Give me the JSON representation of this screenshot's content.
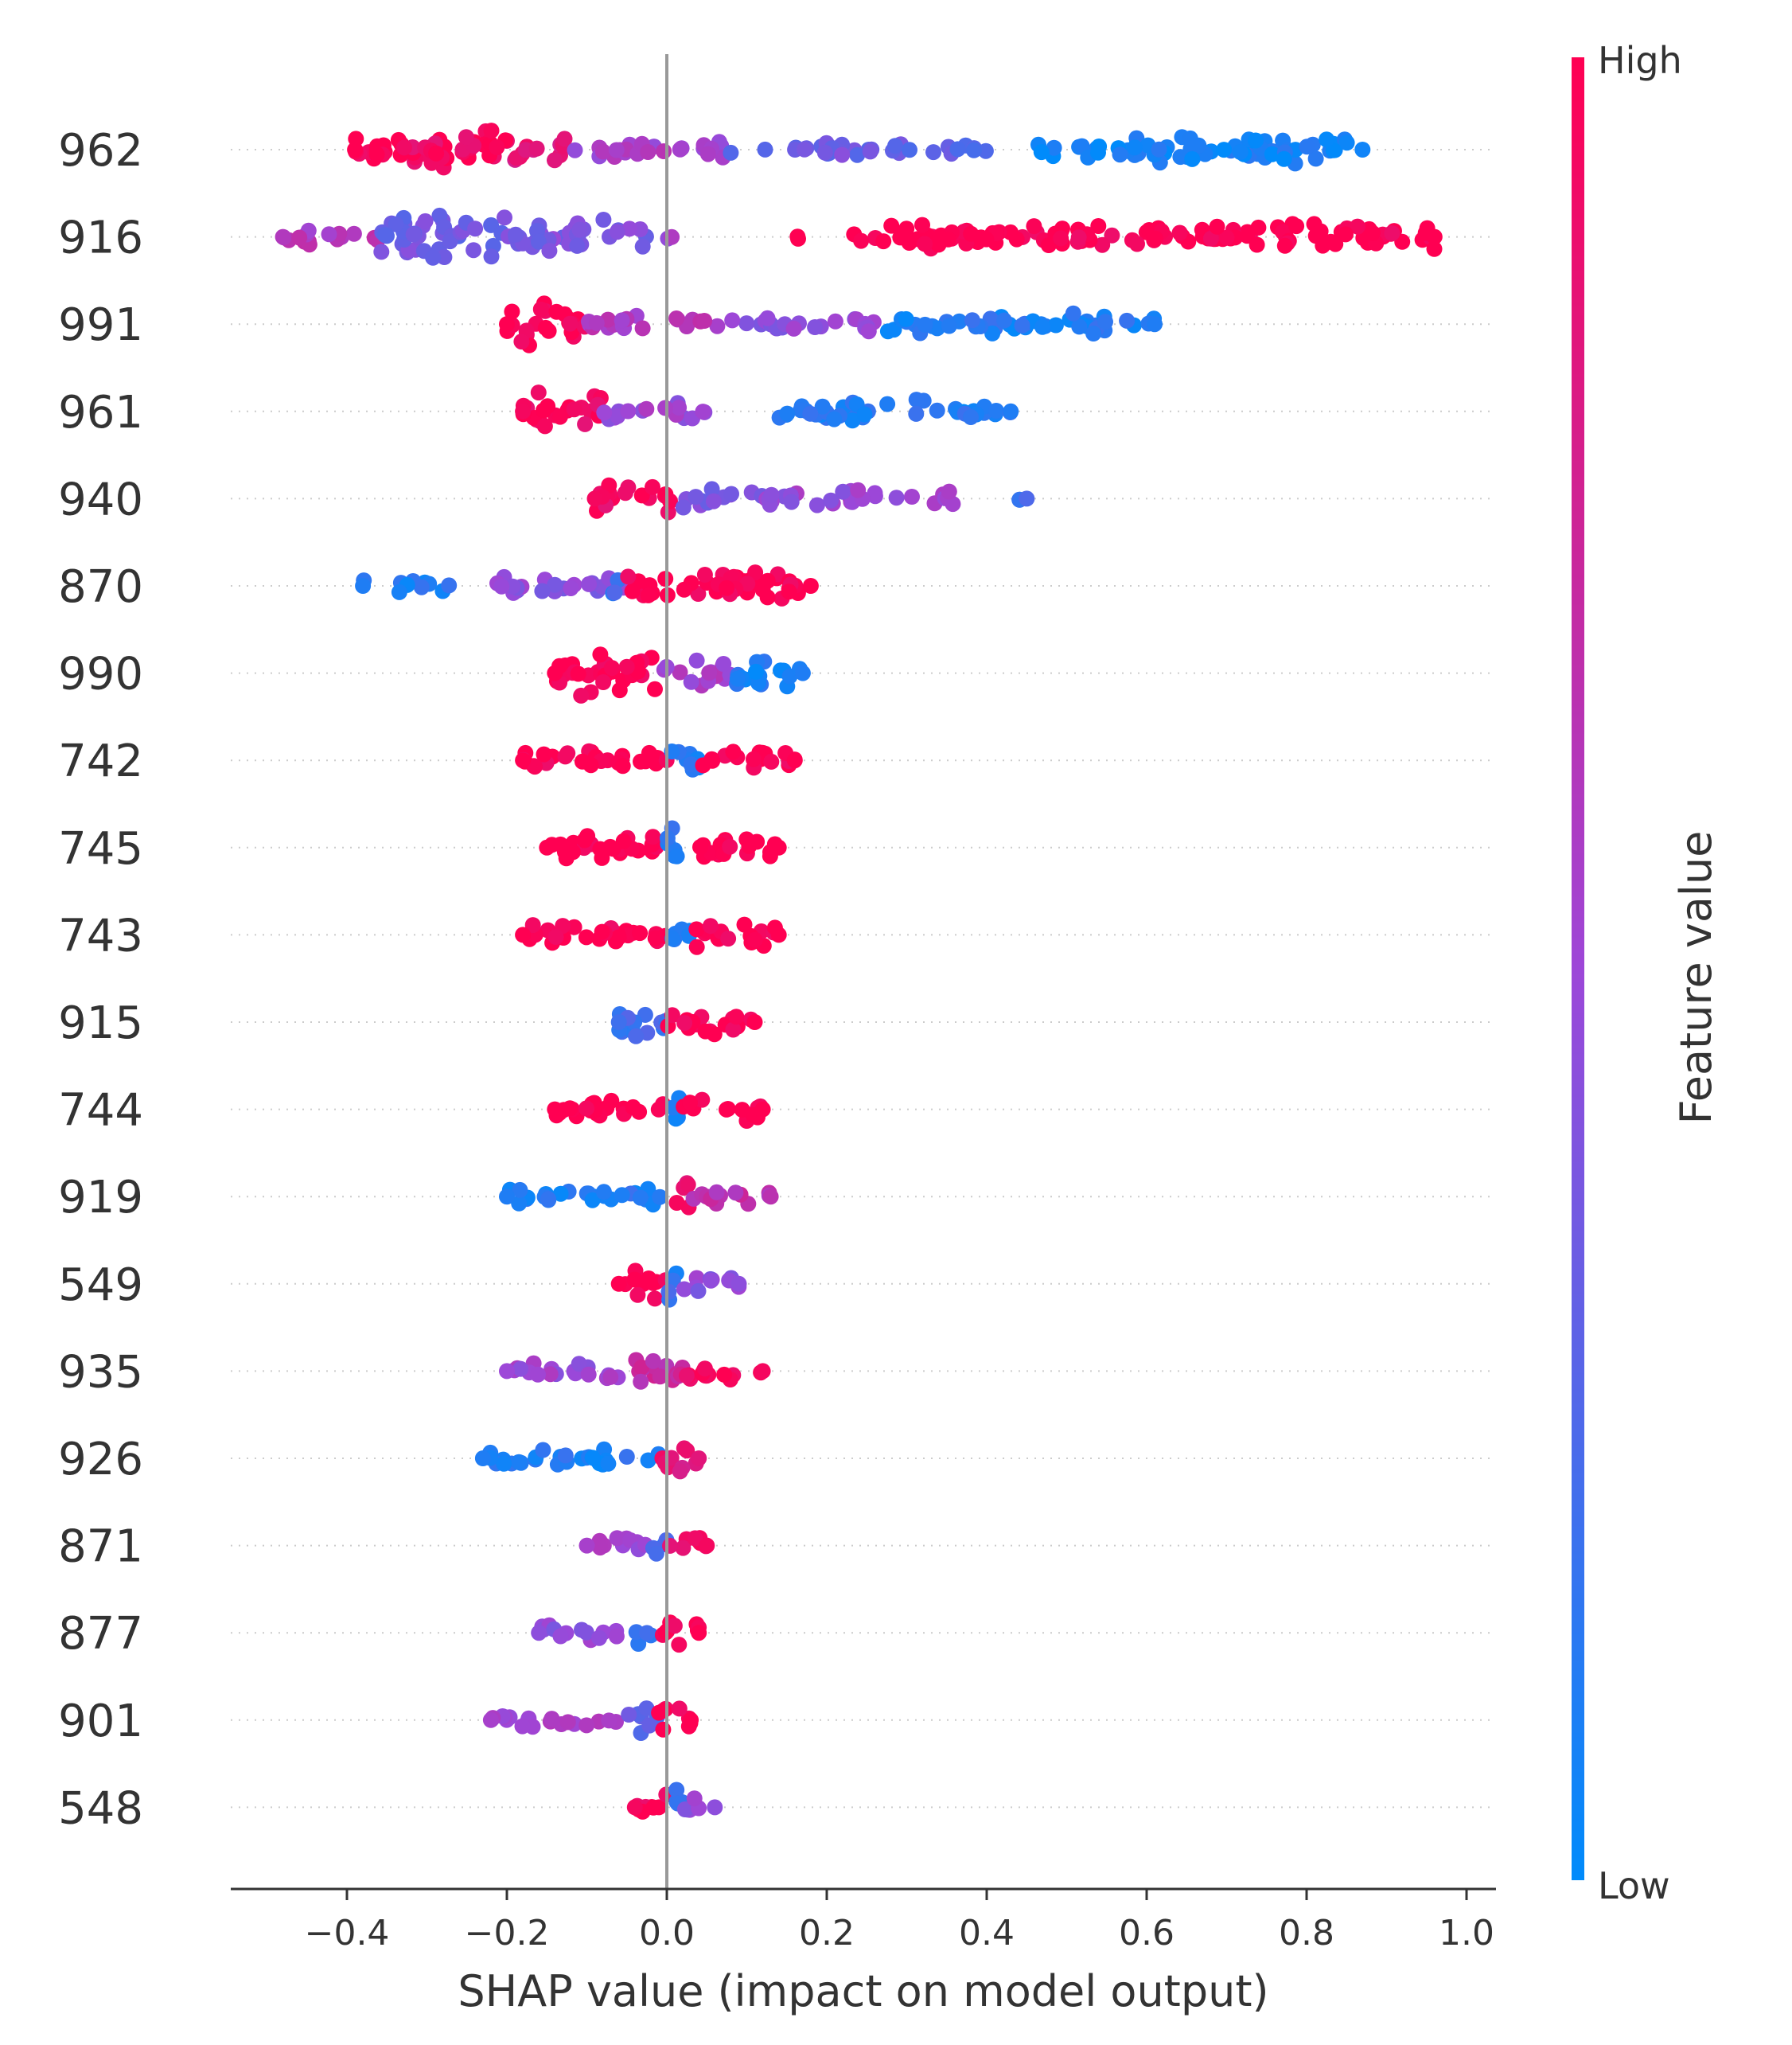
{
  "chart_data": {
    "type": "scatter",
    "subtype": "shap-beeswarm",
    "title": "",
    "xlabel": "SHAP value (impact on model output)",
    "ylabel": "",
    "xlim": [
      -0.55,
      1.03
    ],
    "xticks": [
      -0.4,
      -0.2,
      0.0,
      0.2,
      0.4,
      0.6,
      0.8,
      1.0
    ],
    "xtick_labels": [
      "−0.4",
      "−0.2",
      "0.0",
      "0.2",
      "0.4",
      "0.6",
      "0.8",
      "1.0"
    ],
    "zero_line": true,
    "grid": false,
    "colorbar": {
      "title": "Feature value",
      "high_label": "High",
      "low_label": "Low",
      "high_color": "#ff0052",
      "low_color": "#008bfb"
    },
    "features": [
      {
        "name": "962",
        "min": -0.39,
        "max": 0.87,
        "segments": [
          {
            "from": -0.39,
            "to": -0.33,
            "c": 1.0,
            "d": 3.0
          },
          {
            "from": -0.33,
            "to": -0.2,
            "c": 0.95,
            "d": 3.2
          },
          {
            "from": -0.2,
            "to": -0.12,
            "c": 0.85,
            "d": 1.8
          },
          {
            "from": -0.12,
            "to": 0.08,
            "c": 0.55,
            "d": 1.0
          },
          {
            "from": 0.08,
            "to": 0.3,
            "c": 0.35,
            "d": 0.8
          },
          {
            "from": 0.3,
            "to": 0.4,
            "c": 0.3,
            "d": 0.3
          },
          {
            "from": 0.46,
            "to": 0.87,
            "c": 0.05,
            "d": 1.6
          }
        ]
      },
      {
        "name": "916",
        "min": -0.48,
        "max": 0.96,
        "segments": [
          {
            "from": -0.48,
            "to": -0.36,
            "c": 0.6,
            "d": 1.2
          },
          {
            "from": -0.36,
            "to": -0.2,
            "c": 0.35,
            "d": 3.0
          },
          {
            "from": -0.2,
            "to": -0.02,
            "c": 0.4,
            "d": 2.2
          },
          {
            "from": 0.0,
            "to": 0.01,
            "c": 0.5,
            "d": 0.2
          },
          {
            "from": 0.16,
            "to": 0.17,
            "c": 1.0,
            "d": 0.2
          },
          {
            "from": 0.23,
            "to": 0.96,
            "c": 1.0,
            "d": 1.6
          }
        ]
      },
      {
        "name": "991",
        "min": -0.2,
        "max": 0.61,
        "segments": [
          {
            "from": -0.2,
            "to": -0.1,
            "c": 1.0,
            "d": 3.0
          },
          {
            "from": -0.1,
            "to": 0.08,
            "c": 0.6,
            "d": 0.8
          },
          {
            "from": 0.08,
            "to": 0.27,
            "c": 0.45,
            "d": 0.8
          },
          {
            "from": 0.27,
            "to": 0.61,
            "c": 0.1,
            "d": 1.2
          }
        ]
      },
      {
        "name": "961",
        "min": -0.18,
        "max": 0.43,
        "segments": [
          {
            "from": -0.18,
            "to": -0.08,
            "c": 0.95,
            "d": 2.6
          },
          {
            "from": -0.08,
            "to": 0.05,
            "c": 0.5,
            "d": 1.0
          },
          {
            "from": 0.14,
            "to": 0.43,
            "c": 0.1,
            "d": 1.2
          }
        ]
      },
      {
        "name": "940",
        "min": -0.09,
        "max": 0.45,
        "segments": [
          {
            "from": -0.09,
            "to": 0.02,
            "c": 0.95,
            "d": 2.0
          },
          {
            "from": 0.02,
            "to": 0.12,
            "c": 0.4,
            "d": 1.0
          },
          {
            "from": 0.12,
            "to": 0.37,
            "c": 0.5,
            "d": 0.9
          },
          {
            "from": 0.44,
            "to": 0.45,
            "c": 0.25,
            "d": 0.2
          }
        ]
      },
      {
        "name": "870",
        "min": -0.38,
        "max": 0.18,
        "segments": [
          {
            "from": -0.38,
            "to": -0.27,
            "c": 0.1,
            "d": 0.6
          },
          {
            "from": -0.22,
            "to": -0.05,
            "c": 0.45,
            "d": 1.0
          },
          {
            "from": -0.08,
            "to": -0.06,
            "c": 0.2,
            "d": 2.4
          },
          {
            "from": -0.05,
            "to": 0.18,
            "c": 1.0,
            "d": 1.8
          }
        ]
      },
      {
        "name": "990",
        "min": -0.14,
        "max": 0.17,
        "segments": [
          {
            "from": -0.14,
            "to": -0.01,
            "c": 1.0,
            "d": 2.8
          },
          {
            "from": -0.01,
            "to": 0.08,
            "c": 0.55,
            "d": 1.6
          },
          {
            "from": 0.08,
            "to": 0.17,
            "c": 0.1,
            "d": 1.8
          }
        ]
      },
      {
        "name": "742",
        "min": -0.18,
        "max": 0.16,
        "segments": [
          {
            "from": -0.18,
            "to": 0.0,
            "c": 1.0,
            "d": 1.4
          },
          {
            "from": 0.0,
            "to": 0.04,
            "c": 0.1,
            "d": 2.2
          },
          {
            "from": 0.04,
            "to": 0.16,
            "c": 1.0,
            "d": 1.2
          }
        ]
      },
      {
        "name": "745",
        "min": -0.15,
        "max": 0.14,
        "segments": [
          {
            "from": -0.15,
            "to": 0.0,
            "c": 1.0,
            "d": 1.6
          },
          {
            "from": 0.0,
            "to": 0.03,
            "c": 0.1,
            "d": 2.4
          },
          {
            "from": 0.03,
            "to": 0.14,
            "c": 1.0,
            "d": 1.4
          }
        ]
      },
      {
        "name": "743",
        "min": -0.18,
        "max": 0.14,
        "segments": [
          {
            "from": -0.18,
            "to": 0.0,
            "c": 1.0,
            "d": 1.4
          },
          {
            "from": 0.0,
            "to": 0.03,
            "c": 0.1,
            "d": 2.2
          },
          {
            "from": 0.03,
            "to": 0.14,
            "c": 1.0,
            "d": 1.4
          }
        ]
      },
      {
        "name": "915",
        "min": -0.06,
        "max": 0.11,
        "segments": [
          {
            "from": -0.06,
            "to": 0.0,
            "c": 0.2,
            "d": 2.6
          },
          {
            "from": 0.0,
            "to": 0.11,
            "c": 1.0,
            "d": 1.6
          }
        ]
      },
      {
        "name": "744",
        "min": -0.14,
        "max": 0.12,
        "segments": [
          {
            "from": -0.14,
            "to": 0.0,
            "c": 1.0,
            "d": 1.4
          },
          {
            "from": 0.0,
            "to": 0.02,
            "c": 0.1,
            "d": 2.2
          },
          {
            "from": 0.02,
            "to": 0.12,
            "c": 1.0,
            "d": 1.2
          }
        ]
      },
      {
        "name": "919",
        "min": -0.2,
        "max": 0.13,
        "segments": [
          {
            "from": -0.2,
            "to": 0.0,
            "c": 0.1,
            "d": 1.0
          },
          {
            "from": 0.0,
            "to": 0.03,
            "c": 0.9,
            "d": 2.2
          },
          {
            "from": 0.03,
            "to": 0.13,
            "c": 0.65,
            "d": 1.0
          }
        ]
      },
      {
        "name": "549",
        "min": -0.06,
        "max": 0.09,
        "segments": [
          {
            "from": -0.06,
            "to": 0.0,
            "c": 1.0,
            "d": 1.8
          },
          {
            "from": 0.0,
            "to": 0.02,
            "c": 0.15,
            "d": 2.4
          },
          {
            "from": 0.02,
            "to": 0.09,
            "c": 0.45,
            "d": 1.2
          }
        ]
      },
      {
        "name": "935",
        "min": -0.2,
        "max": 0.12,
        "segments": [
          {
            "from": -0.2,
            "to": -0.05,
            "c": 0.5,
            "d": 1.0
          },
          {
            "from": -0.05,
            "to": 0.02,
            "c": 0.7,
            "d": 2.4
          },
          {
            "from": 0.02,
            "to": 0.12,
            "c": 0.95,
            "d": 1.2
          }
        ]
      },
      {
        "name": "926",
        "min": -0.23,
        "max": 0.04,
        "segments": [
          {
            "from": -0.23,
            "to": -0.01,
            "c": 0.1,
            "d": 1.0
          },
          {
            "from": -0.01,
            "to": 0.04,
            "c": 0.85,
            "d": 2.0
          }
        ]
      },
      {
        "name": "871",
        "min": -0.1,
        "max": 0.05,
        "segments": [
          {
            "from": -0.1,
            "to": -0.02,
            "c": 0.55,
            "d": 1.0
          },
          {
            "from": -0.02,
            "to": 0.0,
            "c": 0.2,
            "d": 2.0
          },
          {
            "from": 0.0,
            "to": 0.05,
            "c": 0.95,
            "d": 1.2
          }
        ]
      },
      {
        "name": "877",
        "min": -0.16,
        "max": 0.04,
        "segments": [
          {
            "from": -0.16,
            "to": -0.05,
            "c": 0.45,
            "d": 0.9
          },
          {
            "from": -0.04,
            "to": -0.02,
            "c": 0.2,
            "d": 2.0
          },
          {
            "from": -0.01,
            "to": 0.04,
            "c": 1.0,
            "d": 2.0
          }
        ]
      },
      {
        "name": "901",
        "min": -0.22,
        "max": 0.03,
        "segments": [
          {
            "from": -0.22,
            "to": -0.05,
            "c": 0.55,
            "d": 0.7
          },
          {
            "from": -0.05,
            "to": -0.01,
            "c": 0.3,
            "d": 1.6
          },
          {
            "from": -0.01,
            "to": 0.03,
            "c": 1.0,
            "d": 2.0
          }
        ]
      },
      {
        "name": "548",
        "min": -0.04,
        "max": 0.06,
        "segments": [
          {
            "from": -0.04,
            "to": 0.0,
            "c": 0.95,
            "d": 2.0
          },
          {
            "from": 0.0,
            "to": 0.02,
            "c": 0.15,
            "d": 2.4
          },
          {
            "from": 0.02,
            "to": 0.06,
            "c": 0.45,
            "d": 1.0
          }
        ]
      }
    ]
  }
}
